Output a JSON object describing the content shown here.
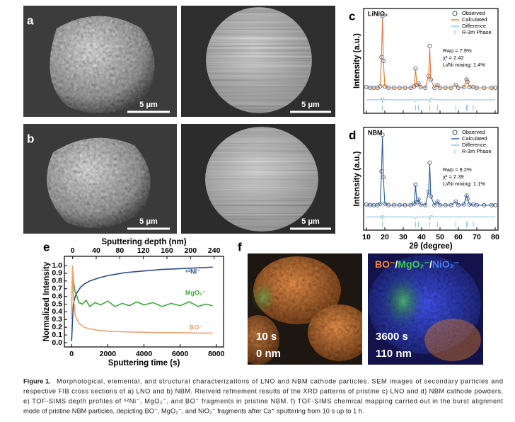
{
  "panels": {
    "a": {
      "label": "a",
      "scale_bars": [
        "5 μm",
        "5 μm"
      ]
    },
    "b": {
      "label": "b",
      "scale_bars": [
        "5 μm",
        "5 μm"
      ]
    },
    "f": {
      "label": "f",
      "left": {
        "time": "10 s",
        "depth": "0 nm"
      },
      "right": {
        "time": "3600 s",
        "depth": "110 nm",
        "legend": [
          {
            "text": "BO⁻",
            "color": "#f08a3c"
          },
          {
            "text": "/",
            "color": "#ffffff"
          },
          {
            "text": "MgO₂⁻",
            "color": "#3ed04a"
          },
          {
            "text": "/",
            "color": "#ffffff"
          },
          {
            "text": "NiO₂⁻",
            "color": "#4a7cf0"
          }
        ]
      }
    }
  },
  "chart_data": [
    {
      "type": "line",
      "label": "c",
      "inset_title": "LiNiO₂",
      "ylabel": "Intensity (a.u.)",
      "xlim": [
        10,
        80
      ],
      "ylim": [
        -0.3,
        1.1
      ],
      "xticks": [
        10,
        20,
        30,
        40,
        50,
        60,
        70,
        80
      ],
      "show_xtick_labels": false,
      "legend": "upper right",
      "x": [
        10,
        12,
        14,
        16,
        17.5,
        18.2,
        18.7,
        19.2,
        20,
        22,
        25,
        28,
        31,
        34,
        36,
        36.7,
        37.4,
        38.3,
        39.5,
        42,
        43.8,
        44.4,
        45,
        47,
        48.6,
        50,
        53,
        56,
        58.6,
        60,
        63,
        64.4,
        64.9,
        66,
        68.1,
        70,
        74,
        78,
        80
      ],
      "series": [
        {
          "name": "Observed",
          "color": "#3b4a6b",
          "marker": "circle",
          "values": [
            0.05,
            0.04,
            0.04,
            0.04,
            0.06,
            0.45,
            1.0,
            0.4,
            0.06,
            0.04,
            0.04,
            0.04,
            0.04,
            0.04,
            0.06,
            0.3,
            0.08,
            0.1,
            0.05,
            0.04,
            0.2,
            0.6,
            0.15,
            0.04,
            0.08,
            0.04,
            0.04,
            0.04,
            0.08,
            0.04,
            0.05,
            0.15,
            0.12,
            0.05,
            0.05,
            0.04,
            0.04,
            0.04,
            0.04
          ]
        },
        {
          "name": "Calculated",
          "color": "#e8772e",
          "values": [
            0.05,
            0.04,
            0.04,
            0.04,
            0.06,
            0.45,
            0.97,
            0.4,
            0.06,
            0.04,
            0.04,
            0.04,
            0.04,
            0.04,
            0.06,
            0.29,
            0.08,
            0.1,
            0.05,
            0.04,
            0.2,
            0.58,
            0.15,
            0.04,
            0.08,
            0.04,
            0.04,
            0.04,
            0.08,
            0.04,
            0.05,
            0.15,
            0.12,
            0.05,
            0.05,
            0.04,
            0.04,
            0.04,
            0.04
          ]
        },
        {
          "name": "Difference",
          "color": "#8cc3e8",
          "values": [
            -0.12,
            -0.12,
            -0.12,
            -0.12,
            -0.12,
            -0.1,
            -0.16,
            -0.1,
            -0.12,
            -0.12,
            -0.12,
            -0.12,
            -0.12,
            -0.12,
            -0.12,
            -0.14,
            -0.12,
            -0.12,
            -0.12,
            -0.12,
            -0.12,
            -0.15,
            -0.1,
            -0.12,
            -0.12,
            -0.12,
            -0.12,
            -0.12,
            -0.12,
            -0.12,
            -0.12,
            -0.12,
            -0.12,
            -0.12,
            -0.12,
            -0.12,
            -0.12,
            -0.12,
            -0.12
          ]
        },
        {
          "name": "R-3m Phase",
          "color": "#8cc3e8",
          "marker": "tick",
          "x": [
            18.7,
            36.7,
            38.3,
            44.4,
            48.6,
            58.6,
            64.4,
            64.9,
            68.1
          ]
        }
      ],
      "annotations": [
        "Rwp = 7.9%",
        "χ² = 2.42",
        "Li/Ni mixing: 1.4%"
      ]
    },
    {
      "type": "line",
      "label": "d",
      "inset_title": "NBM",
      "ylabel": "Intensity (a.u.)",
      "xlabel": "2θ (degree)",
      "xlim": [
        10,
        80
      ],
      "ylim": [
        -0.3,
        1.1
      ],
      "xticks": [
        10,
        20,
        30,
        40,
        50,
        60,
        70,
        80
      ],
      "show_xtick_labels": true,
      "legend": "upper right",
      "x": [
        10,
        12,
        14,
        16,
        17.5,
        18.2,
        18.7,
        19.2,
        20,
        22,
        25,
        28,
        31,
        34,
        36,
        36.7,
        37.4,
        38.3,
        39.5,
        42,
        43.8,
        44.4,
        45,
        47,
        48.6,
        50,
        53,
        56,
        58.6,
        60,
        63,
        64.4,
        64.9,
        66,
        68.1,
        70,
        74,
        78,
        80
      ],
      "series": [
        {
          "name": "Observed",
          "color": "#3b4a6b",
          "marker": "circle",
          "values": [
            0.05,
            0.04,
            0.04,
            0.04,
            0.06,
            0.5,
            1.0,
            0.42,
            0.06,
            0.04,
            0.04,
            0.04,
            0.04,
            0.04,
            0.06,
            0.32,
            0.08,
            0.12,
            0.05,
            0.04,
            0.22,
            0.62,
            0.16,
            0.04,
            0.09,
            0.04,
            0.04,
            0.04,
            0.09,
            0.04,
            0.05,
            0.17,
            0.13,
            0.05,
            0.05,
            0.04,
            0.04,
            0.04,
            0.04
          ]
        },
        {
          "name": "Calculated",
          "color": "#2a5aa0",
          "values": [
            0.05,
            0.04,
            0.04,
            0.04,
            0.06,
            0.5,
            0.98,
            0.42,
            0.06,
            0.04,
            0.04,
            0.04,
            0.04,
            0.04,
            0.06,
            0.31,
            0.08,
            0.12,
            0.05,
            0.04,
            0.22,
            0.6,
            0.16,
            0.04,
            0.09,
            0.04,
            0.04,
            0.04,
            0.09,
            0.04,
            0.05,
            0.17,
            0.13,
            0.05,
            0.05,
            0.04,
            0.04,
            0.04,
            0.04
          ]
        },
        {
          "name": "Difference",
          "color": "#8cc3e8",
          "values": [
            -0.12,
            -0.12,
            -0.12,
            -0.12,
            -0.12,
            -0.1,
            -0.15,
            -0.1,
            -0.12,
            -0.12,
            -0.12,
            -0.12,
            -0.12,
            -0.12,
            -0.12,
            -0.14,
            -0.12,
            -0.12,
            -0.12,
            -0.12,
            -0.12,
            -0.15,
            -0.1,
            -0.12,
            -0.12,
            -0.12,
            -0.12,
            -0.12,
            -0.12,
            -0.12,
            -0.12,
            -0.12,
            -0.12,
            -0.12,
            -0.12,
            -0.12,
            -0.12,
            -0.12,
            -0.12
          ]
        },
        {
          "name": "R-3m Phase",
          "color": "#8cc3e8",
          "marker": "tick",
          "x": [
            18.7,
            36.7,
            38.3,
            44.4,
            48.6,
            58.6,
            64.4,
            64.9,
            68.1
          ]
        }
      ],
      "annotations": [
        "Rwp = 8.2%",
        "χ² = 2.39",
        "Li/Ni mixing: 1.1%"
      ]
    },
    {
      "type": "line",
      "label": "e",
      "xlabel": "Sputtering time (s)",
      "x2label": "Sputtering depth (nm)",
      "ylabel": "Normalized Intensity",
      "xlim": [
        -400,
        8400
      ],
      "xticks": [
        0,
        2000,
        4000,
        6000,
        8000
      ],
      "x2lim": [
        -14,
        256
      ],
      "x2ticks": [
        0,
        40,
        80,
        120,
        160,
        200,
        240
      ],
      "ylim": [
        -0.055,
        1.12
      ],
      "yticks": [
        {
          "value": 0,
          "label": "0.0"
        },
        0.1,
        0.2,
        0.3,
        0.4,
        0.5,
        0.6,
        0.7,
        0.8,
        0.9,
        {
          "value": 1,
          "label": "1.0"
        }
      ],
      "series": [
        {
          "name": "⁶²Ni⁻",
          "color": "#2a4a8c",
          "x": [
            0,
            50,
            100,
            200,
            300,
            500,
            700,
            1000,
            1500,
            2000,
            2500,
            3000,
            4000,
            5000,
            6000,
            7000,
            7800
          ],
          "values": [
            0.02,
            0.3,
            0.5,
            0.6,
            0.65,
            0.72,
            0.76,
            0.8,
            0.84,
            0.87,
            0.89,
            0.91,
            0.93,
            0.95,
            0.96,
            0.97,
            0.98
          ]
        },
        {
          "name": "MgO₂⁻",
          "color": "#3aaa3a",
          "x": [
            0,
            50,
            100,
            200,
            300,
            400,
            600,
            800,
            1000,
            1300,
            1600,
            2000,
            2400,
            2800,
            3200,
            3600,
            4000,
            4500,
            5000,
            5500,
            6000,
            6500,
            7000,
            7400,
            7800
          ],
          "values": [
            0.4,
            0.95,
            0.8,
            0.65,
            0.6,
            0.52,
            0.5,
            0.55,
            0.47,
            0.52,
            0.49,
            0.54,
            0.47,
            0.51,
            0.48,
            0.53,
            0.49,
            0.52,
            0.47,
            0.51,
            0.48,
            0.53,
            0.47,
            0.5,
            0.48
          ]
        },
        {
          "name": "BO⁻",
          "color": "#f0a070",
          "x": [
            0,
            50,
            100,
            200,
            400,
            700,
            1000,
            1500,
            2000,
            3000,
            4000,
            5000,
            6000,
            7000,
            7800
          ],
          "values": [
            0.3,
            1.0,
            0.6,
            0.35,
            0.25,
            0.2,
            0.18,
            0.16,
            0.15,
            0.14,
            0.135,
            0.13,
            0.13,
            0.125,
            0.125
          ]
        }
      ]
    }
  ],
  "caption": {
    "label": "Figure 1.",
    "lines": [
      "Morphological, elemental, and structural characterizations of LNO and NBM cathode particles. SEM images of secondary particles and",
      "respective FIB cross sections of a) LNO and b) NBM. Rietveld refinement results of the XRD patterns of pristine c) LNO and d) NBM cathode powders.",
      "e) TOF-SIMS depth profiles of ⁶²Ni⁻, MgO₂⁻, and BO⁻ fragments in pristine NBM. f) TOF-SIMS chemical mapping carried out in the burst alignment",
      "mode of pristine NBM particles, depicting BO⁻, MgO₂⁻, and NiO₂⁻ fragments after Cs⁺ sputtering from 10 s up to 1 h."
    ]
  }
}
